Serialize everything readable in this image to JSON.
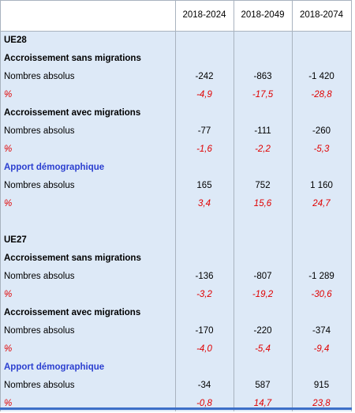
{
  "table": {
    "columns": [
      "2018-2024",
      "2018-2049",
      "2018-2074"
    ],
    "sections": [
      {
        "title": "UE28",
        "groups": [
          {
            "title": "Accroissement sans migrations",
            "title_color": "#000000",
            "rows": [
              {
                "label": "Nombres absolus",
                "values": [
                  "-242",
                  "-863",
                  "-1 420"
                ]
              },
              {
                "label": "%",
                "values": [
                  "-4,9",
                  "-17,5",
                  "-28,8"
                ]
              }
            ]
          },
          {
            "title": "Accroissement avec migrations",
            "title_color": "#000000",
            "rows": [
              {
                "label": "Nombres absolus",
                "values": [
                  "-77",
                  "-111",
                  "-260"
                ]
              },
              {
                "label": "%",
                "values": [
                  "-1,6",
                  "-2,2",
                  "-5,3"
                ]
              }
            ]
          },
          {
            "title": "Apport démographique",
            "title_color": "#2b3fd0",
            "rows": [
              {
                "label": "Nombres absolus",
                "values": [
                  "165",
                  "752",
                  "1 160"
                ]
              },
              {
                "label": "%",
                "values": [
                  "3,4",
                  "15,6",
                  "24,7"
                ]
              }
            ]
          }
        ]
      },
      {
        "title": "UE27",
        "groups": [
          {
            "title": "Accroissement sans migrations",
            "title_color": "#000000",
            "rows": [
              {
                "label": "Nombres absolus",
                "values": [
                  "-136",
                  "-807",
                  "-1 289"
                ]
              },
              {
                "label": "%",
                "values": [
                  "-3,2",
                  "-19,2",
                  "-30,6"
                ]
              }
            ]
          },
          {
            "title": "Accroissement avec migrations",
            "title_color": "#000000",
            "rows": [
              {
                "label": "Nombres absolus",
                "values": [
                  "-170",
                  "-220",
                  "-374"
                ]
              },
              {
                "label": "%",
                "values": [
                  "-4,0",
                  "-5,4",
                  "-9,4"
                ]
              }
            ]
          },
          {
            "title": "Apport démographique",
            "title_color": "#2b3fd0",
            "rows": [
              {
                "label": "Nombres absolus",
                "values": [
                  "-34",
                  "587",
                  "915"
                ]
              },
              {
                "label": "%",
                "values": [
                  "-0,8",
                  "14,7",
                  "23,8"
                ]
              }
            ]
          }
        ]
      }
    ]
  }
}
